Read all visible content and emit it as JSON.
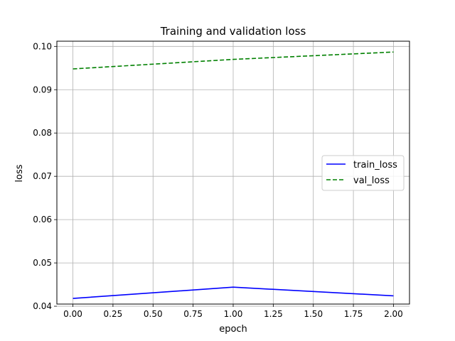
{
  "chart_data": {
    "type": "line",
    "title": "Training and validation loss",
    "xlabel": "epoch",
    "ylabel": "loss",
    "x": [
      0,
      1,
      2
    ],
    "xlim": [
      -0.1,
      2.1
    ],
    "ylim": [
      0.0405,
      0.1012
    ],
    "xticks": [
      0.0,
      0.25,
      0.5,
      0.75,
      1.0,
      1.25,
      1.5,
      1.75,
      2.0
    ],
    "xtick_labels": [
      "0.00",
      "0.25",
      "0.50",
      "0.75",
      "1.00",
      "1.25",
      "1.50",
      "1.75",
      "2.00"
    ],
    "yticks": [
      0.04,
      0.05,
      0.06,
      0.07,
      0.08,
      0.09,
      0.1
    ],
    "ytick_labels": [
      "0.04",
      "0.05",
      "0.06",
      "0.07",
      "0.08",
      "0.09",
      "0.10"
    ],
    "grid": true,
    "legend_position": "center-right",
    "series": [
      {
        "name": "train_loss",
        "values": [
          0.0418,
          0.0444,
          0.0424
        ],
        "color": "#0000ff",
        "style": "solid"
      },
      {
        "name": "val_loss",
        "values": [
          0.0948,
          0.097,
          0.0987
        ],
        "color": "#008000",
        "style": "dashed"
      }
    ]
  }
}
